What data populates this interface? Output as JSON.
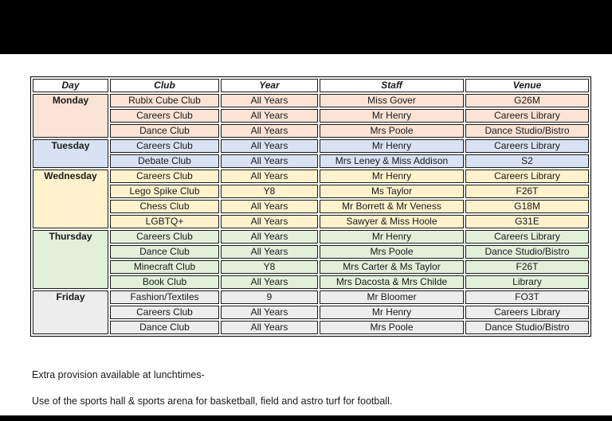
{
  "page": {
    "background_color": "#000000",
    "paper_color": "#ffffff"
  },
  "table": {
    "headers": [
      "Day",
      "Club",
      "Year",
      "Staff",
      "Venue"
    ],
    "groups": [
      {
        "day": "Monday",
        "color": "#fbe3d5",
        "rows": [
          [
            "Rubix Cube Club",
            "All Years",
            "Miss Gover",
            "G26M"
          ],
          [
            "Careers Club",
            "All Years",
            "Mr Henry",
            "Careers Library"
          ],
          [
            "Dance Club",
            "All Years",
            "Mrs Poole",
            "Dance Studio/Bistro"
          ]
        ]
      },
      {
        "day": "Tuesday",
        "color": "#d9e2f3",
        "rows": [
          [
            "Careers Club",
            "All Years",
            "Mr Henry",
            "Careers Library"
          ],
          [
            "Debate Club",
            "All Years",
            "Mrs Leney & Miss Addison",
            "S2"
          ]
        ]
      },
      {
        "day": "Wednesday",
        "color": "#fff2cc",
        "rows": [
          [
            "Careers Club",
            "All Years",
            "Mr Henry",
            "Careers Library"
          ],
          [
            "Lego Spike Club",
            "Y8",
            "Ms Taylor",
            "F26T"
          ],
          [
            "Chess Club",
            "All Years",
            "Mr Borrett & Mr Veness",
            "G18M"
          ],
          [
            "LGBTQ+",
            "All Years",
            "Sawyer & Miss Hoole",
            "G31E"
          ]
        ]
      },
      {
        "day": "Thursday",
        "color": "#e2efd9",
        "rows": [
          [
            "Careers Club",
            "All Years",
            "Mr Henry",
            "Careers Library"
          ],
          [
            "Dance Club",
            "All Years",
            "Mrs Poole",
            "Dance Studio/Bistro"
          ],
          [
            "Minecraft Club",
            "Y8",
            "Mrs Carter & Ms Taylor",
            "F26T"
          ],
          [
            "Book Club",
            "All Years",
            "Mrs Dacosta & Mrs Childe",
            "Library"
          ]
        ]
      },
      {
        "day": "Friday",
        "color": "#ededed",
        "rows": [
          [
            "Fashion/Textiles",
            "9",
            "Mr Bloomer",
            "FO3T"
          ],
          [
            "Careers Club",
            "All Years",
            "Mr Henry",
            "Careers Library"
          ],
          [
            "Dance Club",
            "All Years",
            "Mrs Poole",
            "Dance Studio/Bistro"
          ]
        ]
      }
    ]
  },
  "notes": [
    "Extra provision available at lunchtimes-",
    "Use of the sports hall & sports arena for basketball, field and astro turf for football."
  ]
}
